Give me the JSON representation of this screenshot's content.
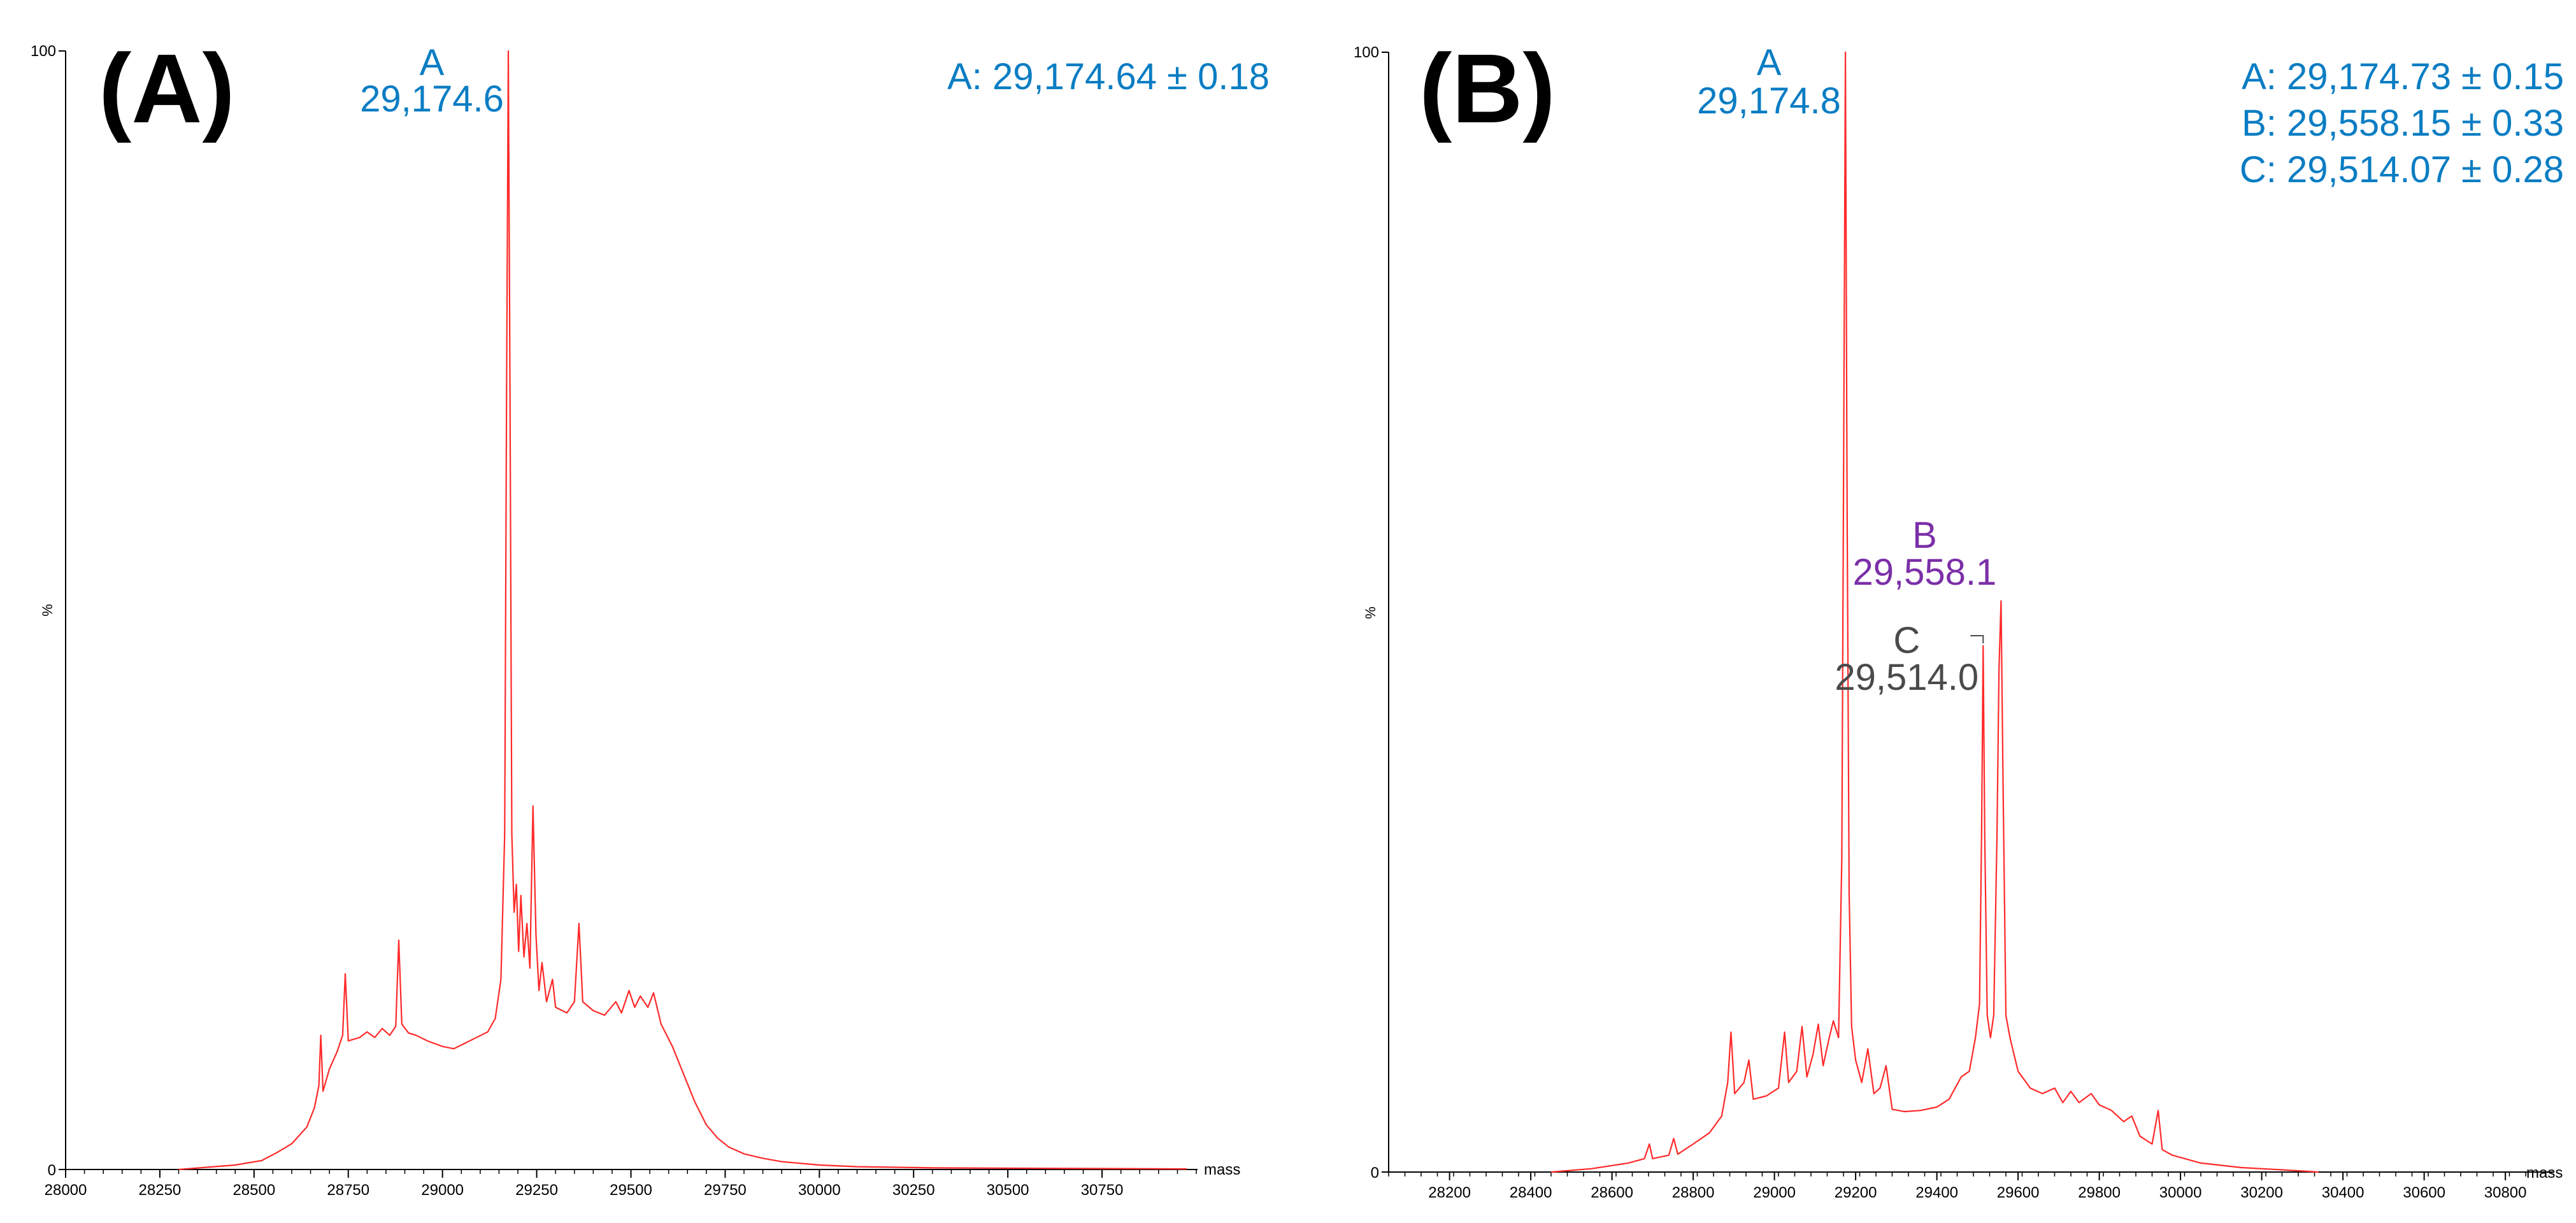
{
  "chart_data": [
    {
      "type": "line",
      "panel_label": "(A)",
      "xlabel": "mass",
      "ylabel": "%",
      "xlim": [
        28000,
        31000
      ],
      "ylim": [
        0,
        100
      ],
      "x_ticks": [
        28000,
        28250,
        28500,
        28750,
        29000,
        29250,
        29500,
        29750,
        30000,
        30250,
        30500,
        30750
      ],
      "x_tick_labels": [
        "28000",
        "28250",
        "28500",
        "28750",
        "29000",
        "29250",
        "29500",
        "29750",
        "30000",
        "30250",
        "30500",
        "30750"
      ],
      "y_tick_labels": [
        "100",
        "0"
      ],
      "line_color": "#ff2a2a",
      "series": [
        {
          "points": [
            [
              28300,
              0
            ],
            [
              28450,
              0.4
            ],
            [
              28520,
              0.8
            ],
            [
              28560,
              1.5
            ],
            [
              28600,
              2.3
            ],
            [
              28640,
              3.8
            ],
            [
              28660,
              5.5
            ],
            [
              28672,
              7.5
            ],
            [
              28677,
              12
            ],
            [
              28683,
              7
            ],
            [
              28700,
              9
            ],
            [
              28720,
              10.5
            ],
            [
              28735,
              12
            ],
            [
              28742,
              17.5
            ],
            [
              28750,
              11.5
            ],
            [
              28780,
              11.8
            ],
            [
              28800,
              12.3
            ],
            [
              28820,
              11.8
            ],
            [
              28840,
              12.6
            ],
            [
              28860,
              12
            ],
            [
              28876,
              12.8
            ],
            [
              28884,
              20.5
            ],
            [
              28892,
              13
            ],
            [
              28910,
              12.2
            ],
            [
              28930,
              12
            ],
            [
              28960,
              11.5
            ],
            [
              29000,
              11
            ],
            [
              29030,
              10.8
            ],
            [
              29060,
              11.3
            ],
            [
              29090,
              11.8
            ],
            [
              29120,
              12.3
            ],
            [
              29140,
              13.5
            ],
            [
              29155,
              17
            ],
            [
              29165,
              30
            ],
            [
              29170,
              70
            ],
            [
              29174.6,
              100
            ],
            [
              29179,
              70
            ],
            [
              29184,
              30
            ],
            [
              29190,
              23
            ],
            [
              29196,
              25.5
            ],
            [
              29202,
              19.5
            ],
            [
              29208,
              24.5
            ],
            [
              29216,
              19
            ],
            [
              29224,
              22
            ],
            [
              29232,
              18
            ],
            [
              29240,
              32.5
            ],
            [
              29248,
              21
            ],
            [
              29256,
              16
            ],
            [
              29264,
              18.5
            ],
            [
              29276,
              15
            ],
            [
              29292,
              17
            ],
            [
              29300,
              14.5
            ],
            [
              29330,
              14
            ],
            [
              29350,
              15
            ],
            [
              29362,
              22
            ],
            [
              29372,
              15
            ],
            [
              29400,
              14.2
            ],
            [
              29430,
              13.8
            ],
            [
              29460,
              15
            ],
            [
              29475,
              14
            ],
            [
              29495,
              16
            ],
            [
              29510,
              14.5
            ],
            [
              29525,
              15.5
            ],
            [
              29545,
              14.5
            ],
            [
              29560,
              15.8
            ],
            [
              29580,
              13
            ],
            [
              29610,
              11
            ],
            [
              29640,
              8.5
            ],
            [
              29670,
              6
            ],
            [
              29700,
              4
            ],
            [
              29730,
              2.8
            ],
            [
              29760,
              2
            ],
            [
              29800,
              1.4
            ],
            [
              29850,
              1
            ],
            [
              29900,
              0.7
            ],
            [
              30000,
              0.4
            ],
            [
              30100,
              0.25
            ],
            [
              30300,
              0.15
            ],
            [
              30600,
              0.1
            ],
            [
              30975,
              0.05
            ]
          ]
        }
      ],
      "annotations": [
        {
          "peak": "A",
          "mass_label": "29,174.6",
          "x": 29174.6,
          "color": "#0a7dc3"
        }
      ],
      "stats": [
        "A: 29,174.64 ± 0.18"
      ]
    },
    {
      "type": "line",
      "panel_label": "(B)",
      "xlabel": "mass",
      "ylabel": "%",
      "xlim": [
        28050,
        30850
      ],
      "ylim": [
        0,
        100
      ],
      "x_ticks": [
        28200,
        28400,
        28600,
        28800,
        29000,
        29200,
        29400,
        29600,
        29800,
        30000,
        30200,
        30400,
        30600,
        30800
      ],
      "x_tick_labels": [
        "28200",
        "28400",
        "28600",
        "28800",
        "29000",
        "29200",
        "29400",
        "29600",
        "29800",
        "30000",
        "30200",
        "30400",
        "30600",
        "30800"
      ],
      "y_tick_labels": [
        "100",
        "0"
      ],
      "line_color": "#ff2a2a",
      "series": [
        {
          "points": [
            [
              28450,
              0
            ],
            [
              28550,
              0.3
            ],
            [
              28640,
              0.8
            ],
            [
              28680,
              1.2
            ],
            [
              28692,
              2.5
            ],
            [
              28700,
              1.2
            ],
            [
              28740,
              1.5
            ],
            [
              28752,
              3
            ],
            [
              28762,
              1.6
            ],
            [
              28800,
              2.5
            ],
            [
              28840,
              3.5
            ],
            [
              28870,
              5
            ],
            [
              28885,
              8
            ],
            [
              28893,
              12.5
            ],
            [
              28902,
              7
            ],
            [
              28925,
              8
            ],
            [
              28937,
              10
            ],
            [
              28948,
              6.5
            ],
            [
              28980,
              6.8
            ],
            [
              29010,
              7.5
            ],
            [
              29025,
              12.5
            ],
            [
              29035,
              8
            ],
            [
              29055,
              9
            ],
            [
              29068,
              13
            ],
            [
              29080,
              8.5
            ],
            [
              29095,
              10.5
            ],
            [
              29108,
              13.2
            ],
            [
              29120,
              9.5
            ],
            [
              29135,
              12
            ],
            [
              29145,
              13.5
            ],
            [
              29158,
              12
            ],
            [
              29166,
              28
            ],
            [
              29170,
              60
            ],
            [
              29174.8,
              100
            ],
            [
              29179,
              60
            ],
            [
              29184,
              25
            ],
            [
              29190,
              13
            ],
            [
              29200,
              10
            ],
            [
              29215,
              8
            ],
            [
              29230,
              11
            ],
            [
              29245,
              7
            ],
            [
              29260,
              7.5
            ],
            [
              29275,
              9.5
            ],
            [
              29290,
              5.6
            ],
            [
              29320,
              5.4
            ],
            [
              29360,
              5.5
            ],
            [
              29400,
              5.8
            ],
            [
              29430,
              6.5
            ],
            [
              29460,
              8.5
            ],
            [
              29480,
              9
            ],
            [
              29495,
              12
            ],
            [
              29505,
              15
            ],
            [
              29510,
              30
            ],
            [
              29514,
              47
            ],
            [
              29518,
              30
            ],
            [
              29524,
              14
            ],
            [
              29532,
              12
            ],
            [
              29540,
              14
            ],
            [
              29548,
              30
            ],
            [
              29553,
              45
            ],
            [
              29558.1,
              51
            ],
            [
              29563,
              35
            ],
            [
              29570,
              14
            ],
            [
              29580,
              12
            ],
            [
              29600,
              9
            ],
            [
              29630,
              7.5
            ],
            [
              29660,
              7
            ],
            [
              29690,
              7.5
            ],
            [
              29710,
              6.2
            ],
            [
              29730,
              7.2
            ],
            [
              29750,
              6.2
            ],
            [
              29780,
              7
            ],
            [
              29800,
              6
            ],
            [
              29830,
              5.5
            ],
            [
              29860,
              4.5
            ],
            [
              29880,
              5
            ],
            [
              29900,
              3.2
            ],
            [
              29930,
              2.5
            ],
            [
              29945,
              5.5
            ],
            [
              29955,
              2
            ],
            [
              29980,
              1.5
            ],
            [
              30050,
              0.8
            ],
            [
              30150,
              0.4
            ],
            [
              30250,
              0.2
            ],
            [
              30340,
              0
            ]
          ]
        }
      ],
      "annotations": [
        {
          "peak": "A",
          "mass_label": "29,174.8",
          "x": 29174.8,
          "color": "#0a7dc3"
        },
        {
          "peak": "B",
          "mass_label": "29,558.1",
          "x": 29558.1,
          "color": "#7b2fa8"
        },
        {
          "peak": "C",
          "mass_label": "29,514.0",
          "x": 29514.0,
          "color": "#4a4a4a"
        }
      ],
      "stats": [
        "A: 29,174.73 ± 0.15",
        "B: 29,558.15 ± 0.33",
        "C: 29,514.07 ± 0.28"
      ]
    }
  ]
}
